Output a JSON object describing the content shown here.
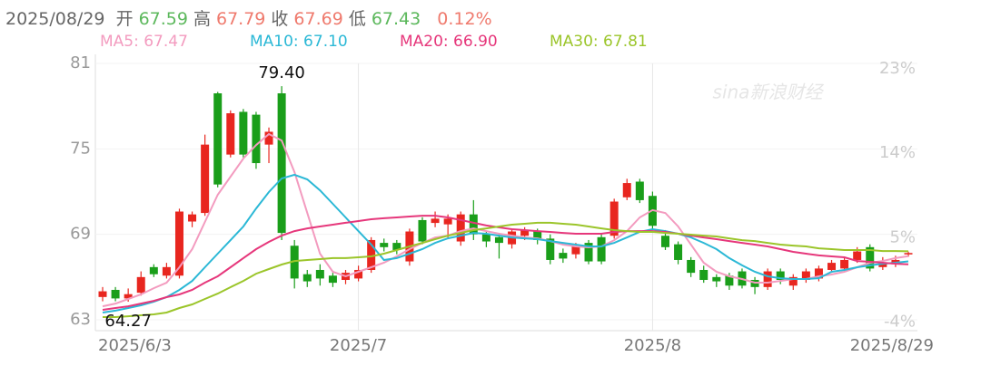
{
  "header": {
    "date": "2025/08/29",
    "items": [
      {
        "label": "开",
        "value": 67.59,
        "color": "#5cb85c"
      },
      {
        "label": "高",
        "value": 67.79,
        "color": "#ef7a6d"
      },
      {
        "label": "收",
        "value": 67.69,
        "color": "#ef7a6d"
      },
      {
        "label": "低",
        "value": 67.43,
        "color": "#5cb85c"
      }
    ],
    "change": "0.12%",
    "change_color": "#ef7a6d"
  },
  "chart_data": {
    "type": "candlestick",
    "watermark": "sina新浪财经",
    "categories": [
      "2025/6/3",
      null,
      null,
      null,
      null,
      null,
      null,
      null,
      null,
      null,
      null,
      null,
      null,
      null,
      null,
      null,
      null,
      null,
      null,
      null,
      "2025/7",
      null,
      null,
      null,
      null,
      null,
      null,
      null,
      null,
      null,
      null,
      null,
      null,
      null,
      null,
      null,
      null,
      null,
      null,
      null,
      null,
      null,
      null,
      "2025/8",
      null,
      null,
      null,
      null,
      null,
      null,
      null,
      null,
      null,
      null,
      null,
      null,
      null,
      null,
      null,
      null,
      null,
      null,
      null,
      "2025/8/29"
    ],
    "open": [
      64.6,
      65.1,
      64.5,
      64.9,
      66.7,
      66.1,
      66.1,
      69.9,
      70.5,
      78.9,
      74.6,
      77.6,
      77.4,
      75.3,
      78.9,
      68.2,
      66.2,
      66.5,
      66.1,
      65.8,
      65.9,
      66.5,
      68.4,
      68.4,
      67.1,
      70.0,
      69.8,
      69.7,
      68.5,
      70.4,
      69.0,
      68.8,
      68.3,
      68.9,
      69.2,
      68.7,
      67.7,
      67.6,
      68.4,
      68.8,
      68.9,
      71.6,
      72.7,
      71.7,
      68.9,
      68.3,
      67.2,
      66.5,
      66.0,
      66.1,
      66.4,
      65.8,
      65.3,
      66.4,
      65.4,
      65.8,
      65.9,
      66.5,
      66.6,
      67.2,
      68.1,
      66.7,
      66.9,
      67.59
    ],
    "high": [
      65.3,
      65.3,
      65.2,
      66.4,
      66.9,
      67.0,
      70.8,
      70.6,
      76.0,
      79.0,
      77.7,
      77.8,
      77.6,
      76.5,
      79.4,
      68.6,
      66.5,
      66.9,
      66.3,
      66.5,
      66.8,
      68.8,
      68.7,
      68.6,
      69.4,
      70.2,
      70.6,
      70.4,
      70.6,
      71.4,
      69.2,
      69.1,
      69.4,
      69.5,
      69.4,
      69.0,
      68.0,
      68.4,
      68.6,
      69.0,
      71.5,
      72.9,
      72.9,
      72.0,
      69.3,
      68.5,
      67.4,
      66.8,
      66.2,
      66.3,
      66.6,
      66.0,
      66.6,
      66.6,
      66.2,
      66.6,
      66.8,
      67.2,
      67.4,
      68.1,
      68.3,
      67.4,
      67.5,
      67.79
    ],
    "low": [
      64.3,
      64.3,
      64.27,
      64.7,
      66.0,
      65.9,
      65.9,
      69.5,
      70.3,
      72.3,
      74.4,
      74.4,
      73.6,
      74.0,
      68.6,
      65.2,
      65.3,
      65.4,
      65.3,
      65.5,
      65.7,
      66.3,
      67.8,
      67.6,
      66.8,
      68.3,
      69.5,
      68.7,
      68.2,
      68.6,
      68.1,
      67.3,
      68.0,
      68.6,
      68.3,
      66.9,
      67.0,
      67.3,
      66.9,
      66.9,
      68.7,
      71.4,
      71.2,
      69.3,
      67.9,
      66.9,
      66.0,
      65.6,
      65.3,
      65.1,
      65.2,
      64.8,
      65.1,
      65.5,
      65.1,
      65.6,
      65.7,
      66.3,
      66.4,
      67.0,
      66.4,
      66.5,
      66.7,
      67.43
    ],
    "close": [
      65.0,
      64.5,
      64.8,
      66.0,
      66.2,
      66.7,
      70.6,
      70.4,
      75.3,
      72.5,
      77.5,
      74.6,
      74.0,
      76.2,
      69.1,
      65.9,
      65.7,
      65.9,
      65.6,
      66.3,
      66.5,
      68.6,
      68.1,
      67.9,
      69.2,
      68.5,
      70.1,
      70.1,
      70.4,
      69.0,
      68.5,
      68.4,
      69.2,
      69.3,
      68.6,
      67.2,
      67.3,
      68.2,
      67.1,
      67.1,
      71.3,
      72.6,
      71.4,
      69.6,
      68.1,
      67.2,
      66.3,
      65.8,
      65.7,
      65.4,
      65.4,
      65.3,
      66.4,
      65.8,
      66.0,
      66.4,
      66.6,
      67.0,
      67.2,
      67.8,
      66.6,
      67.0,
      67.2,
      67.69
    ],
    "up_color": "#e8261f",
    "down_color": "#1a9e1a",
    "max_label": "79.40",
    "min_label": "64.27",
    "series": [
      {
        "name": "MA5: 67.47",
        "color": "#f39bbf",
        "values": [
          63.95,
          64.14,
          64.46,
          64.78,
          65.22,
          65.61,
          66.69,
          67.96,
          69.87,
          71.78,
          73.05,
          74.32,
          75.27,
          76.04,
          75.59,
          73.37,
          70.5,
          67.64,
          66.37,
          66.05,
          66.37,
          66.69,
          67.01,
          67.45,
          67.96,
          68.4,
          68.78,
          68.91,
          69.23,
          69.42,
          69.23,
          69.04,
          68.91,
          68.78,
          68.72,
          68.53,
          68.28,
          68.15,
          68.09,
          68.15,
          68.59,
          69.23,
          70.19,
          70.7,
          70.5,
          69.55,
          68.28,
          67.01,
          66.37,
          66.05,
          65.86,
          65.61,
          65.61,
          65.73,
          65.86,
          65.86,
          66.05,
          66.18,
          66.37,
          66.69,
          67.01,
          67.13,
          67.33,
          67.47
        ]
      },
      {
        "name": "MA10: 67.10",
        "color": "#2bb8d6",
        "values": [
          63.51,
          63.64,
          63.83,
          64.02,
          64.27,
          64.59,
          65.1,
          65.73,
          66.69,
          67.64,
          68.59,
          69.55,
          70.82,
          71.97,
          72.92,
          73.18,
          72.86,
          72.09,
          71.14,
          70.19,
          69.23,
          68.28,
          67.2,
          67.33,
          67.64,
          67.96,
          68.4,
          68.72,
          68.91,
          69.1,
          69.04,
          68.91,
          68.78,
          68.72,
          68.66,
          68.53,
          68.4,
          68.28,
          68.15,
          68.15,
          68.4,
          68.78,
          69.17,
          69.36,
          69.23,
          69.04,
          68.78,
          68.4,
          67.96,
          67.33,
          66.82,
          66.37,
          66.05,
          65.92,
          65.86,
          65.86,
          65.92,
          66.37,
          66.5,
          66.69,
          66.82,
          66.94,
          67.01,
          67.1
        ]
      },
      {
        "name": "MA20: 66.90",
        "color": "#e6377b",
        "values": [
          63.7,
          63.83,
          63.95,
          64.14,
          64.33,
          64.59,
          64.78,
          65.1,
          65.61,
          66.05,
          66.69,
          67.33,
          67.96,
          68.47,
          68.91,
          69.23,
          69.42,
          69.55,
          69.68,
          69.81,
          69.93,
          70.06,
          70.13,
          70.19,
          70.25,
          70.31,
          70.31,
          70.19,
          70.0,
          69.81,
          69.62,
          69.49,
          69.36,
          69.3,
          69.23,
          69.17,
          69.1,
          69.04,
          69.04,
          69.04,
          69.17,
          69.23,
          69.23,
          69.23,
          69.17,
          69.04,
          68.91,
          68.78,
          68.66,
          68.53,
          68.4,
          68.28,
          68.15,
          67.96,
          67.77,
          67.64,
          67.52,
          67.45,
          67.39,
          67.13,
          67.07,
          67.01,
          66.94,
          66.9
        ]
      },
      {
        "name": "MA30: 67.81",
        "color": "#9bc52a",
        "values": [
          63.19,
          63.19,
          63.25,
          63.32,
          63.38,
          63.51,
          63.83,
          64.08,
          64.46,
          64.84,
          65.29,
          65.73,
          66.24,
          66.56,
          66.88,
          67.13,
          67.2,
          67.26,
          67.33,
          67.33,
          67.39,
          67.45,
          67.64,
          67.9,
          68.15,
          68.4,
          68.66,
          68.91,
          69.1,
          69.3,
          69.42,
          69.55,
          69.68,
          69.74,
          69.81,
          69.81,
          69.74,
          69.68,
          69.55,
          69.42,
          69.3,
          69.23,
          69.17,
          69.17,
          69.1,
          69.04,
          68.98,
          68.91,
          68.85,
          68.72,
          68.59,
          68.53,
          68.4,
          68.28,
          68.21,
          68.15,
          68.02,
          67.96,
          67.9,
          67.9,
          67.9,
          67.83,
          67.83,
          67.81
        ]
      }
    ],
    "ylim": [
      63,
      81
    ],
    "yticks": [
      63,
      69,
      75,
      81
    ],
    "y2lim": [
      -4.33,
      23
    ],
    "y2ticks": [
      {
        "value": 23,
        "label": "23%"
      },
      {
        "value": 14,
        "label": "14%"
      },
      {
        "value": 5,
        "label": "5%"
      },
      {
        "value": -4,
        "label": "-4%"
      }
    ],
    "grid": true
  }
}
